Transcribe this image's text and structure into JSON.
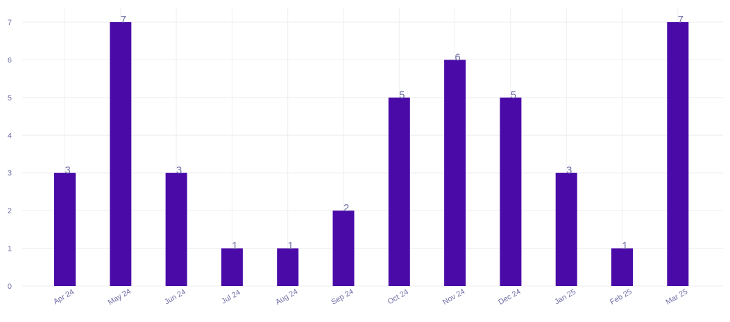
{
  "chart_data": {
    "type": "bar",
    "title": "",
    "xlabel": "",
    "ylabel": "",
    "categories": [
      "Apr 24",
      "May 24",
      "Jun 24",
      "Jul 24",
      "Aug 24",
      "Sep 24",
      "Oct 24",
      "Nov 24",
      "Dec 24",
      "Jan 25",
      "Feb 25",
      "Mar 25"
    ],
    "values": [
      3,
      7,
      3,
      1,
      1,
      2,
      5,
      6,
      5,
      3,
      1,
      7
    ],
    "ylim": [
      0,
      7
    ],
    "yticks": [
      0,
      1,
      2,
      3,
      4,
      5,
      6,
      7
    ],
    "grid": true,
    "data_labels": true,
    "colors": {
      "bar": "#4a0aa8",
      "grid": "#eeeeee",
      "text": "#6f6fa8"
    }
  }
}
